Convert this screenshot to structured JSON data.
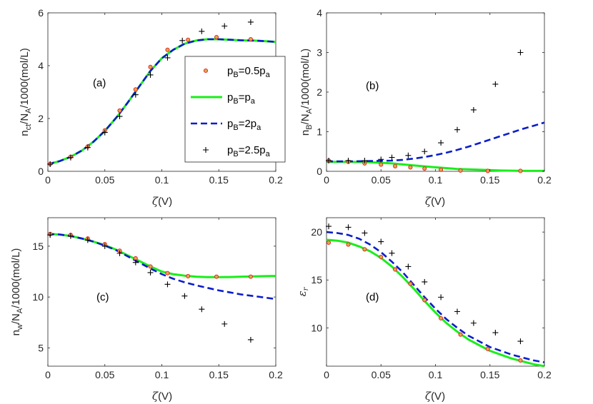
{
  "chart_data": [
    {
      "type": "line",
      "panel": "(a)",
      "xlabel": "ζ(V)",
      "ylabel": "n_ct/N_A/1000(mol/L)",
      "xlim": [
        0,
        0.2
      ],
      "ylim": [
        0,
        6
      ],
      "xticks": [
        "0",
        "0.05",
        "0.1",
        "0.15",
        "0.2"
      ],
      "yticks": [
        "0",
        "2",
        "4",
        "6"
      ],
      "legend_position": "center-right",
      "series": [
        {
          "name": "p_B=0.5p_a",
          "style": "circle",
          "x": [
            0.002,
            0.02,
            0.035,
            0.05,
            0.063,
            0.077,
            0.09,
            0.105,
            0.123,
            0.148,
            0.178
          ],
          "y": [
            0.28,
            0.55,
            0.94,
            1.55,
            2.3,
            3.1,
            3.95,
            4.6,
            4.98,
            5.08,
            5.0
          ]
        },
        {
          "name": "p_B=p_a",
          "style": "solid",
          "x": [
            0,
            0.01,
            0.02,
            0.03,
            0.04,
            0.05,
            0.06,
            0.07,
            0.08,
            0.09,
            0.1,
            0.11,
            0.12,
            0.13,
            0.14,
            0.15,
            0.16,
            0.17,
            0.18,
            0.19,
            0.2
          ],
          "y": [
            0.27,
            0.38,
            0.55,
            0.79,
            1.12,
            1.53,
            2.03,
            2.6,
            3.2,
            3.8,
            4.28,
            4.6,
            4.83,
            4.95,
            5.0,
            5.0,
            4.98,
            4.96,
            4.95,
            4.93,
            4.9
          ]
        },
        {
          "name": "p_B=2p_a",
          "style": "dashed",
          "x": [
            0,
            0.01,
            0.02,
            0.03,
            0.04,
            0.05,
            0.06,
            0.07,
            0.08,
            0.09,
            0.1,
            0.11,
            0.12,
            0.13,
            0.14,
            0.15,
            0.16,
            0.17,
            0.18,
            0.19,
            0.2
          ],
          "y": [
            0.27,
            0.38,
            0.55,
            0.79,
            1.12,
            1.53,
            2.03,
            2.6,
            3.2,
            3.8,
            4.28,
            4.6,
            4.83,
            4.95,
            5.0,
            5.0,
            4.98,
            4.96,
            4.95,
            4.93,
            4.9
          ]
        },
        {
          "name": "p_B=2.5p_a",
          "style": "plus",
          "x": [
            0.002,
            0.02,
            0.035,
            0.05,
            0.063,
            0.077,
            0.09,
            0.105,
            0.118,
            0.135,
            0.155,
            0.178
          ],
          "y": [
            0.27,
            0.52,
            0.9,
            1.47,
            2.08,
            2.9,
            3.65,
            4.3,
            4.95,
            5.3,
            5.5,
            5.65
          ]
        }
      ]
    },
    {
      "type": "line",
      "panel": "(b)",
      "xlabel": "ζ(V)",
      "ylabel": "n_B/N_A/1000(mol/L)",
      "xlim": [
        0,
        0.2
      ],
      "ylim": [
        0,
        4
      ],
      "xticks": [
        "0",
        "0.05",
        "0.1",
        "0.15",
        "0.2"
      ],
      "yticks": [
        "0",
        "1",
        "2",
        "3",
        "4"
      ],
      "series": [
        {
          "name": "p_B=0.5p_a",
          "style": "circle",
          "x": [
            0.002,
            0.02,
            0.035,
            0.05,
            0.063,
            0.077,
            0.09,
            0.105,
            0.123,
            0.148,
            0.178
          ],
          "y": [
            0.27,
            0.24,
            0.2,
            0.17,
            0.13,
            0.1,
            0.07,
            0.04,
            0.02,
            0.01,
            0.01
          ]
        },
        {
          "name": "p_B=p_a",
          "style": "solid",
          "x": [
            0,
            0.02,
            0.04,
            0.06,
            0.08,
            0.1,
            0.12,
            0.14,
            0.16,
            0.18,
            0.2
          ],
          "y": [
            0.24,
            0.24,
            0.23,
            0.2,
            0.15,
            0.1,
            0.06,
            0.04,
            0.02,
            0.01,
            0.01
          ]
        },
        {
          "name": "p_B=2p_a",
          "style": "dashed",
          "x": [
            0,
            0.02,
            0.04,
            0.06,
            0.07,
            0.08,
            0.09,
            0.1,
            0.11,
            0.12,
            0.13,
            0.14,
            0.15,
            0.16,
            0.17,
            0.18,
            0.19,
            0.2
          ],
          "y": [
            0.25,
            0.25,
            0.26,
            0.27,
            0.29,
            0.32,
            0.36,
            0.41,
            0.47,
            0.54,
            0.62,
            0.71,
            0.8,
            0.89,
            0.98,
            1.07,
            1.15,
            1.23
          ]
        },
        {
          "name": "p_B=2.5p_a",
          "style": "plus",
          "x": [
            0.002,
            0.02,
            0.035,
            0.05,
            0.06,
            0.075,
            0.09,
            0.105,
            0.12,
            0.135,
            0.155,
            0.178
          ],
          "y": [
            0.27,
            0.27,
            0.27,
            0.3,
            0.35,
            0.4,
            0.5,
            0.72,
            1.05,
            1.55,
            2.2,
            3.0
          ]
        }
      ]
    },
    {
      "type": "line",
      "panel": "(c)",
      "xlabel": "ζ(V)",
      "ylabel": "n_w/N_A/1000(mol/L)",
      "xlim": [
        0,
        0.2
      ],
      "ylim": [
        3.2,
        17.8
      ],
      "xticks": [
        "0",
        "0.05",
        "0.1",
        "0.15",
        "0.2"
      ],
      "yticks": [
        "5",
        "10",
        "15"
      ],
      "series": [
        {
          "name": "p_B=0.5p_a",
          "style": "circle",
          "x": [
            0.002,
            0.02,
            0.035,
            0.05,
            0.063,
            0.077,
            0.09,
            0.105,
            0.123,
            0.148,
            0.178
          ],
          "y": [
            16.2,
            16.1,
            15.75,
            15.2,
            14.55,
            13.8,
            13.0,
            12.35,
            12.05,
            12.0,
            12.0
          ]
        },
        {
          "name": "p_B=p_a",
          "style": "solid",
          "x": [
            0,
            0.01,
            0.02,
            0.03,
            0.04,
            0.05,
            0.06,
            0.07,
            0.08,
            0.09,
            0.1,
            0.11,
            0.12,
            0.13,
            0.14,
            0.15,
            0.16,
            0.17,
            0.18,
            0.19,
            0.2
          ],
          "y": [
            16.2,
            16.15,
            16.0,
            15.75,
            15.45,
            15.1,
            14.65,
            14.1,
            13.55,
            13.0,
            12.5,
            12.25,
            12.1,
            12.0,
            11.95,
            11.95,
            11.97,
            12.0,
            12.03,
            12.05,
            12.07
          ]
        },
        {
          "name": "p_B=2p_a",
          "style": "dashed",
          "x": [
            0,
            0.01,
            0.02,
            0.03,
            0.04,
            0.05,
            0.06,
            0.07,
            0.08,
            0.09,
            0.1,
            0.11,
            0.12,
            0.13,
            0.14,
            0.15,
            0.16,
            0.17,
            0.18,
            0.19,
            0.2
          ],
          "y": [
            16.2,
            16.15,
            16.0,
            15.75,
            15.45,
            15.05,
            14.6,
            14.0,
            13.4,
            12.8,
            12.25,
            11.8,
            11.45,
            11.15,
            10.9,
            10.65,
            10.45,
            10.25,
            10.1,
            9.95,
            9.8
          ]
        },
        {
          "name": "p_B=2.5p_a",
          "style": "plus",
          "x": [
            0.002,
            0.02,
            0.035,
            0.05,
            0.063,
            0.077,
            0.09,
            0.105,
            0.12,
            0.135,
            0.155,
            0.178
          ],
          "y": [
            16.1,
            16.0,
            15.6,
            15.0,
            14.3,
            13.4,
            12.4,
            11.25,
            10.1,
            8.8,
            7.35,
            5.8
          ]
        }
      ]
    },
    {
      "type": "line",
      "panel": "(d)",
      "xlabel": "ζ(V)",
      "ylabel": "ε_r",
      "xlim": [
        0,
        0.2
      ],
      "ylim": [
        6,
        21.5
      ],
      "xticks": [
        "0",
        "0.05",
        "0.1",
        "0.15",
        "0.2"
      ],
      "yticks": [
        "10",
        "15",
        "20"
      ],
      "series": [
        {
          "name": "p_B=0.5p_a",
          "style": "circle",
          "x": [
            0.002,
            0.02,
            0.035,
            0.05,
            0.063,
            0.077,
            0.09,
            0.105,
            0.123,
            0.148,
            0.178
          ],
          "y": [
            18.9,
            18.7,
            18.2,
            17.4,
            16.1,
            14.6,
            12.9,
            11.0,
            9.3,
            7.8,
            6.6
          ]
        },
        {
          "name": "p_B=p_a",
          "style": "solid",
          "x": [
            0,
            0.01,
            0.02,
            0.03,
            0.04,
            0.05,
            0.06,
            0.07,
            0.08,
            0.09,
            0.1,
            0.11,
            0.12,
            0.13,
            0.14,
            0.15,
            0.16,
            0.17,
            0.18,
            0.19,
            0.2
          ],
          "y": [
            19.2,
            19.1,
            18.9,
            18.5,
            18.0,
            17.3,
            16.4,
            15.3,
            14.1,
            12.8,
            11.6,
            10.5,
            9.6,
            8.8,
            8.2,
            7.6,
            7.2,
            6.8,
            6.5,
            6.2,
            6.0
          ]
        },
        {
          "name": "p_B=2p_a",
          "style": "dashed",
          "x": [
            0,
            0.01,
            0.02,
            0.03,
            0.04,
            0.05,
            0.06,
            0.07,
            0.08,
            0.09,
            0.1,
            0.11,
            0.12,
            0.13,
            0.14,
            0.15,
            0.16,
            0.17,
            0.18,
            0.19,
            0.2
          ],
          "y": [
            20.0,
            19.9,
            19.7,
            19.3,
            18.7,
            17.9,
            16.9,
            15.8,
            14.5,
            13.2,
            12.0,
            10.9,
            10.0,
            9.2,
            8.6,
            8.0,
            7.6,
            7.2,
            6.9,
            6.6,
            6.4
          ]
        },
        {
          "name": "p_B=2.5p_a",
          "style": "plus",
          "x": [
            0.002,
            0.02,
            0.035,
            0.05,
            0.06,
            0.075,
            0.09,
            0.105,
            0.12,
            0.135,
            0.155,
            0.178
          ],
          "y": [
            20.6,
            20.5,
            19.9,
            19.0,
            17.8,
            16.4,
            14.8,
            13.2,
            11.7,
            10.5,
            9.5,
            8.6
          ]
        }
      ]
    }
  ],
  "legend": {
    "items": [
      {
        "base": "p",
        "sub": "B",
        "mid": "=0.5p",
        "sub2": "a",
        "style": "circle"
      },
      {
        "base": "p",
        "sub": "B",
        "mid": "=p",
        "sub2": "a",
        "style": "solid"
      },
      {
        "base": "p",
        "sub": "B",
        "mid": "=2p",
        "sub2": "a",
        "style": "dashed"
      },
      {
        "base": "p",
        "sub": "B",
        "mid": "=2.5p",
        "sub2": "a",
        "style": "plus"
      }
    ]
  },
  "colors": {
    "circle_edge": "#d62728",
    "circle_fill": "#e8a24a",
    "solid": "#1aee1a",
    "dashed": "#0a1ec8",
    "plus": "#000000",
    "axis": "#262626"
  }
}
